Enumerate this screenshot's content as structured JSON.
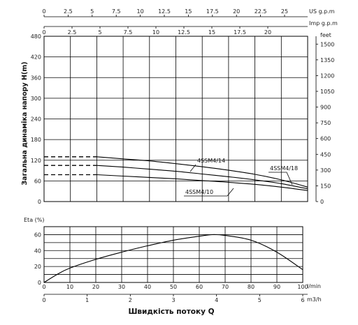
{
  "colors": {
    "grid": "#000000",
    "curves": "#000000",
    "background": "#ffffff"
  },
  "chart_data": [
    {
      "type": "line",
      "title": "",
      "ylabel": "Загальна динаміка напору H(m)",
      "ylim": [
        0,
        480
      ],
      "y_ticks": [
        "0",
        "60",
        "120",
        "180",
        "240",
        "300",
        "360",
        "420",
        "480"
      ],
      "xlim": [
        0,
        100
      ],
      "x_unit": "l/min",
      "grid": true,
      "top_axes": [
        {
          "unit": "US g.p.m",
          "ticks": [
            "0",
            "2.5",
            "5",
            "7.5",
            "10",
            "12.5",
            "15",
            "17.5",
            "20",
            "22.5",
            "25"
          ]
        },
        {
          "unit": "Imp g.p.m",
          "ticks": [
            "0",
            "2.5",
            "5",
            "7.5",
            "10",
            "12.5",
            "15",
            "17.5",
            "20"
          ]
        }
      ],
      "right_axis": {
        "unit": "feet",
        "ticks": [
          "0",
          "150",
          "300",
          "450",
          "600",
          "750",
          "900",
          "1050",
          "1200",
          "1350",
          "1500"
        ]
      },
      "series": [
        {
          "name": "4SSM4/14",
          "dashed": {
            "x": [
              0,
              20
            ],
            "y": [
              130,
              130
            ]
          },
          "x": [
            20,
            30,
            40,
            50,
            60,
            70,
            80,
            90,
            100
          ],
          "y": [
            130,
            124,
            118,
            110,
            101,
            91,
            79,
            63,
            42
          ]
        },
        {
          "name": "4SSM4/18",
          "dashed": {
            "x": [
              0,
              20
            ],
            "y": [
              105,
              105
            ]
          },
          "x": [
            20,
            30,
            40,
            50,
            60,
            70,
            80,
            90,
            100
          ],
          "y": [
            105,
            100,
            94,
            88,
            80,
            72,
            63,
            52,
            37
          ]
        },
        {
          "name": "4SSM4/10",
          "dashed": {
            "x": [
              0,
              20
            ],
            "y": [
              78,
              78
            ]
          },
          "x": [
            20,
            30,
            40,
            50,
            60,
            70,
            80,
            90,
            100
          ],
          "y": [
            78,
            74,
            70,
            66,
            61,
            56,
            50,
            42,
            32
          ]
        }
      ]
    },
    {
      "type": "line",
      "title": "",
      "ylabel": "Eta (%)",
      "ylim": [
        0,
        70
      ],
      "y_ticks": [
        "0",
        "20",
        "40",
        "60"
      ],
      "xlabel": "Швидкість потоку Q",
      "xlim": [
        0,
        100
      ],
      "x_ticks": [
        "0",
        "10",
        "20",
        "30",
        "40",
        "50",
        "60",
        "70",
        "80",
        "90",
        "100"
      ],
      "x_unit": "l/min",
      "bottom_axis": {
        "unit": "m3/h",
        "ticks": [
          "0",
          "1",
          "2",
          "3",
          "4",
          "5",
          "6"
        ]
      },
      "grid": true,
      "series": [
        {
          "x": [
            0,
            5,
            10,
            20,
            30,
            40,
            50,
            60,
            65,
            70,
            80,
            90,
            100
          ],
          "y": [
            0,
            10,
            18,
            29,
            38,
            46,
            53,
            58,
            60,
            59,
            53,
            38,
            16
          ]
        }
      ]
    }
  ]
}
